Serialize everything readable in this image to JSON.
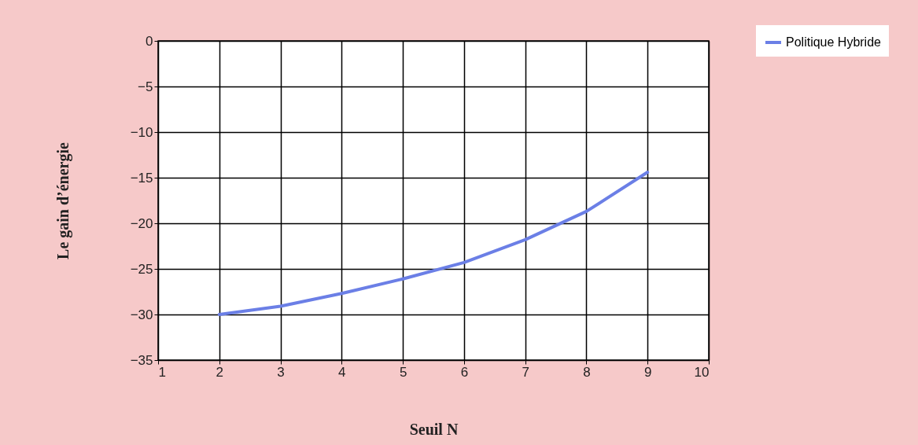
{
  "chart_data": {
    "type": "line",
    "xlabel": "Seuil N",
    "ylabel": "Le gain d’énergie",
    "x": [
      2,
      3,
      4,
      5,
      6,
      7,
      8,
      9
    ],
    "series": [
      {
        "name": "Politique Hybride",
        "color": "#6b7fe6",
        "values": [
          -30.0,
          -29.1,
          -27.7,
          -26.1,
          -24.3,
          -21.8,
          -18.7,
          -14.4
        ]
      }
    ],
    "xlim": [
      1,
      10
    ],
    "xticks": [
      1,
      2,
      3,
      4,
      5,
      6,
      7,
      8,
      9,
      10
    ],
    "ylim": [
      -35,
      0
    ],
    "yticks": [
      0,
      -5,
      -10,
      -15,
      -20,
      -25,
      -30,
      -35
    ],
    "grid": true,
    "legend": "top right",
    "marker": "none",
    "line_style": "solid"
  }
}
